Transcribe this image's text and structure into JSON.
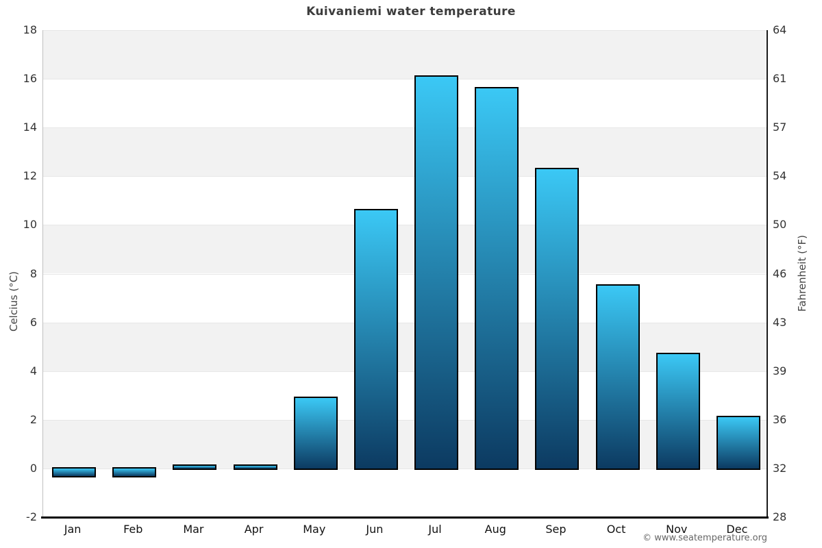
{
  "page": {
    "title": "Kuivaniemi water temperature",
    "copyright": "© www.seatemperature.org"
  },
  "chart_data": {
    "type": "bar",
    "title": "Kuivaniemi water temperature",
    "categories": [
      "Jan",
      "Feb",
      "Mar",
      "Apr",
      "May",
      "Jun",
      "Jul",
      "Aug",
      "Sep",
      "Oct",
      "Nov",
      "Dec"
    ],
    "values": [
      -0.3,
      -0.3,
      0.1,
      0.1,
      2.9,
      10.6,
      16.1,
      15.6,
      12.3,
      7.5,
      4.7,
      2.1
    ],
    "ylabel_left": "Celcius (°C)",
    "ylabel_right": "Fahrenheit (°F)",
    "ylim": [
      -2,
      18
    ],
    "ytick_step": 2,
    "yticks_celsius": [
      -2,
      0,
      2,
      4,
      6,
      8,
      10,
      12,
      14,
      16,
      18
    ],
    "yticks_fahrenheit": [
      28,
      32,
      36,
      39,
      43,
      46,
      50,
      54,
      57,
      61,
      64
    ],
    "grid": "alternating horizontal bands, gridline every 2°C",
    "legend": false,
    "colors": {
      "bar_gradient_top": "#3bc8f5",
      "bar_gradient_bottom": "#0c3a61",
      "bar_border": "#000000",
      "band_fill": "#f2f2f2",
      "gridline": "#e7e7e7",
      "axis_left": "#c0c0c0",
      "axis_right": "#1a1a1a",
      "axis_bottom": "#000000",
      "title_color": "#3c3c3c"
    }
  }
}
